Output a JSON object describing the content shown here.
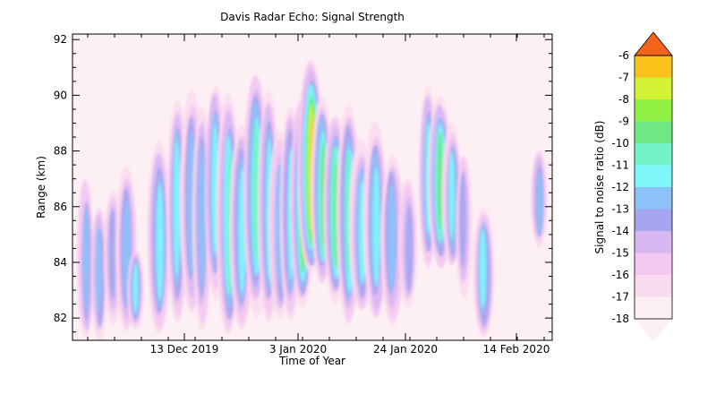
{
  "chart_data": {
    "type": "heatmap",
    "title": "Davis Radar Echo: Signal Strength",
    "xlabel": "Time of Year",
    "ylabel": "Range (km)",
    "x_tick_labels": [
      "13 Dec 2019",
      "3 Jan 2020",
      "24 Jan 2020",
      "14 Feb 2020"
    ],
    "y_ticks": [
      82,
      84,
      86,
      88,
      90,
      92
    ],
    "ylim": [
      81.2,
      92.2
    ],
    "colorbar": {
      "label": "Signal to noise ratio (dB)",
      "levels": [
        -18,
        -17,
        -16,
        -15,
        -14,
        -13,
        -12,
        -11,
        -10,
        -9,
        -8,
        -7,
        -6
      ],
      "colors": [
        "#fdf0f4",
        "#fbdcee",
        "#f3c8f3",
        "#d8b8f3",
        "#a6a6f0",
        "#8cc2f8",
        "#7ef6fa",
        "#72f3c8",
        "#6fe985",
        "#90f043",
        "#d3f236",
        "#fbc219"
      ],
      "extend_low_color": "#fdf0f4",
      "extend_high_color": "#f4631b"
    },
    "grid": false,
    "peak_snr_db": -6,
    "peak_range_km": [
      86.5,
      90.5
    ],
    "description_units": "dB"
  },
  "colors": {
    "background": "#fdf0f4",
    "frame": "#000000"
  }
}
